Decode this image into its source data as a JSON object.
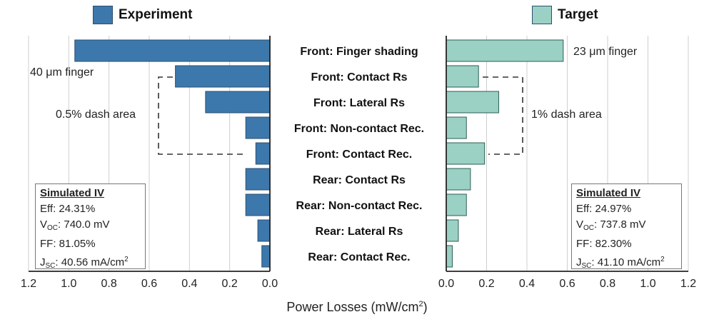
{
  "chart_data": [
    {
      "type": "bar",
      "orientation": "horizontal",
      "panel": "left",
      "xaxis": "reversed",
      "series": [
        {
          "name": "Experiment",
          "values": [
            0.97,
            0.47,
            0.32,
            0.12,
            0.07,
            0.12,
            0.12,
            0.06,
            0.04
          ]
        }
      ],
      "categories": [
        "Front: Finger shading",
        "Front: Contact Rs",
        "Front: Lateral Rs",
        "Front: Non-contact Rec.",
        "Front: Contact Rec.",
        "Rear: Contact Rs",
        "Rear: Non-contact Rec.",
        "Rear: Lateral Rs",
        "Rear: Contact Rec."
      ],
      "xlim": [
        1.2,
        0.0
      ],
      "xticks": [
        "1.2",
        "1.0",
        "0.8",
        "0.6",
        "0.4",
        "0.2",
        "0.0"
      ],
      "grid": "vertical",
      "color": "#3d78ac"
    },
    {
      "type": "bar",
      "orientation": "horizontal",
      "panel": "right",
      "series": [
        {
          "name": "Target",
          "values": [
            0.58,
            0.16,
            0.26,
            0.1,
            0.19,
            0.12,
            0.1,
            0.06,
            0.03
          ]
        }
      ],
      "categories": [
        "Front: Finger shading",
        "Front: Contact Rs",
        "Front: Lateral Rs",
        "Front: Non-contact Rec.",
        "Front: Contact Rec.",
        "Rear: Contact Rs",
        "Rear: Non-contact Rec.",
        "Rear: Lateral Rs",
        "Rear: Contact Rec."
      ],
      "xlim": [
        0.0,
        1.2
      ],
      "xticks": [
        "0.0",
        "0.2",
        "0.4",
        "0.6",
        "0.8",
        "1.0",
        "1.2"
      ],
      "grid": "vertical",
      "color": "#9bd0c4"
    }
  ],
  "xlabel_main": "Power Losses (mW/cm",
  "xlabel_sup": "2",
  "xlabel_end": ")",
  "legend": {
    "experiment": {
      "label": "Experiment",
      "color": "#3d78ac"
    },
    "target": {
      "label": "Target",
      "color": "#9bd0c4"
    }
  },
  "annotations": {
    "left_finger": "40 μm finger",
    "left_dash": "0.5% dash area",
    "right_finger": "23 μm finger",
    "right_dash": "1% dash area"
  },
  "iv_left": {
    "title": "Simulated IV",
    "eff": "Eff: 24.31%",
    "voc_pre": "V",
    "voc_sub": "OC",
    "voc_val": ": 740.0 mV",
    "ff": "FF: 81.05%",
    "jsc_pre": "J",
    "jsc_sub": "SC",
    "jsc_val": ": 40.56 mA/cm",
    "jsc_sup": "2"
  },
  "iv_right": {
    "title": "Simulated IV",
    "eff": "Eff: 24.97%",
    "voc_pre": "V",
    "voc_sub": "OC",
    "voc_val": ": 737.8 mV",
    "ff": "FF: 82.30%",
    "jsc_pre": "J",
    "jsc_sub": "SC",
    "jsc_val": ": 41.10 mA/cm",
    "jsc_sup": "2"
  }
}
